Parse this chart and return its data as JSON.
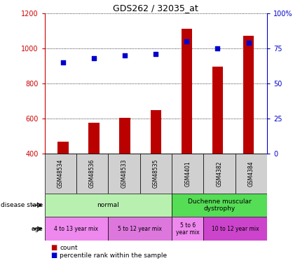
{
  "title": "GDS262 / 32035_at",
  "samples": [
    "GSM48534",
    "GSM48536",
    "GSM48533",
    "GSM48535",
    "GSM4401",
    "GSM4382",
    "GSM4384"
  ],
  "bar_values": [
    470,
    575,
    605,
    650,
    1110,
    895,
    1070
  ],
  "scatter_values": [
    65,
    68,
    70,
    71,
    80,
    75,
    79
  ],
  "bar_color": "#bb0000",
  "scatter_color": "#0000cc",
  "ylim_left": [
    400,
    1200
  ],
  "ylim_right": [
    0,
    100
  ],
  "yticks_left": [
    400,
    600,
    800,
    1000,
    1200
  ],
  "yticks_right": [
    0,
    25,
    50,
    75,
    100
  ],
  "disease_state_groups": [
    {
      "label": "normal",
      "start": 0,
      "end": 3,
      "color": "#b8f0b0"
    },
    {
      "label": "Duchenne muscular\ndystrophy",
      "start": 4,
      "end": 6,
      "color": "#55dd55"
    }
  ],
  "age_groups": [
    {
      "label": "4 to 13 year mix",
      "start": 0,
      "end": 1,
      "color": "#ee88ee"
    },
    {
      "label": "5 to 12 year mix",
      "start": 2,
      "end": 3,
      "color": "#dd77dd"
    },
    {
      "label": "5 to 6\nyear mix",
      "start": 4,
      "end": 4,
      "color": "#ee88ee"
    },
    {
      "label": "10 to 12 year mix",
      "start": 5,
      "end": 6,
      "color": "#cc44cc"
    }
  ],
  "legend_count_label": "count",
  "legend_pct_label": "percentile rank within the sample",
  "left_axis_color": "#cc0000",
  "right_axis_color": "#0000cc",
  "grid_color": "black",
  "sample_cell_color": "#d0d0d0",
  "background_color": "white",
  "bar_width": 0.35
}
